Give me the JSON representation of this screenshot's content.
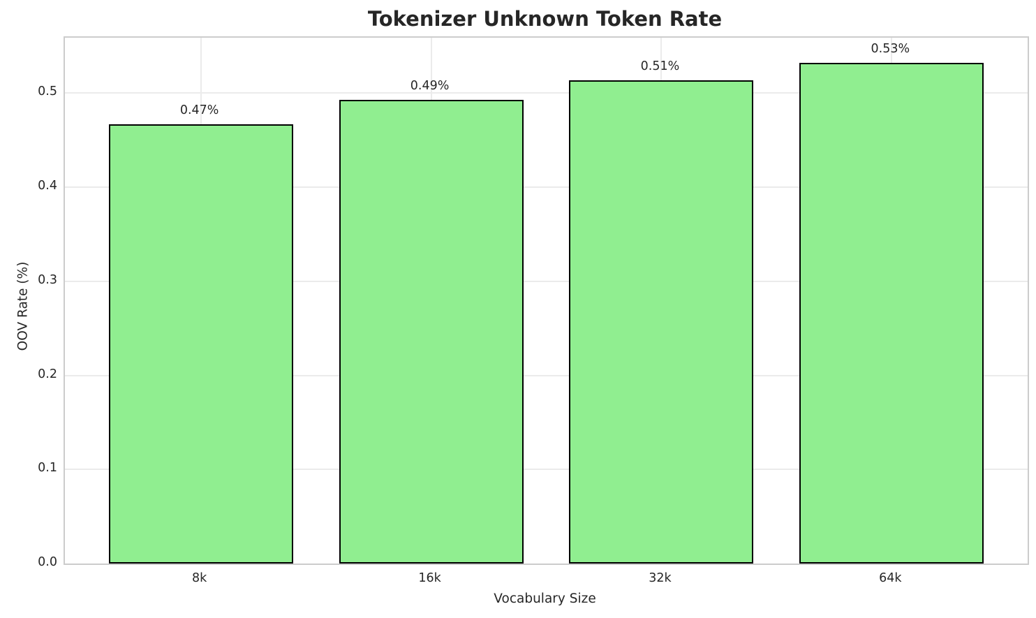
{
  "chart_data": {
    "type": "bar",
    "title": "Tokenizer Unknown Token Rate",
    "xlabel": "Vocabulary Size",
    "ylabel": "OOV Rate (%)",
    "categories": [
      "8k",
      "16k",
      "32k",
      "64k"
    ],
    "values": [
      0.467,
      0.493,
      0.514,
      0.532
    ],
    "bar_labels": [
      "0.47%",
      "0.49%",
      "0.51%",
      "0.53%"
    ],
    "ylim": [
      0,
      0.559
    ],
    "yticks": [
      0.0,
      0.1,
      0.2,
      0.3,
      0.4,
      0.5
    ],
    "ytick_labels": [
      "0.0",
      "0.1",
      "0.2",
      "0.3",
      "0.4",
      "0.5"
    ],
    "grid": true,
    "legend_position": "none",
    "bar_color": "#90EE90",
    "bar_edge_color": "#000000",
    "grid_color": "#ebebeb",
    "spine_color": "#cccccc",
    "text_color": "#262626",
    "background_color": "#ffffff"
  }
}
